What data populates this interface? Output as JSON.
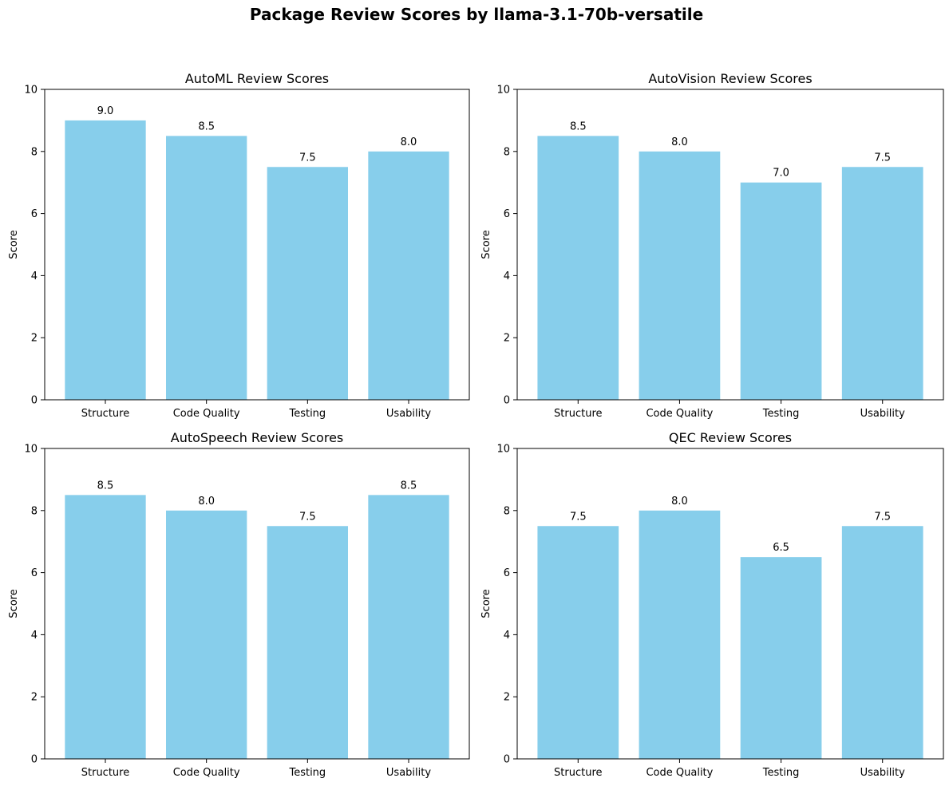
{
  "figure": {
    "suptitle": "Package Review Scores by llama-3.1-70b-versatile",
    "bar_color": "#87ceeb"
  },
  "chart_data": [
    {
      "type": "bar",
      "title": "AutoML Review Scores",
      "categories": [
        "Structure",
        "Code Quality",
        "Testing",
        "Usability"
      ],
      "values": [
        9.0,
        8.5,
        7.5,
        8.0
      ],
      "value_labels": [
        "9.0",
        "8.5",
        "7.5",
        "8.0"
      ],
      "xlabel": "",
      "ylabel": "Score",
      "ylim": [
        0,
        10
      ],
      "yticks": [
        0,
        2,
        4,
        6,
        8,
        10
      ],
      "ytick_labels": [
        "0",
        "2",
        "4",
        "6",
        "8",
        "10"
      ],
      "grid": false,
      "legend": "none"
    },
    {
      "type": "bar",
      "title": "AutoVision Review Scores",
      "categories": [
        "Structure",
        "Code Quality",
        "Testing",
        "Usability"
      ],
      "values": [
        8.5,
        8.0,
        7.0,
        7.5
      ],
      "value_labels": [
        "8.5",
        "8.0",
        "7.0",
        "7.5"
      ],
      "xlabel": "",
      "ylabel": "Score",
      "ylim": [
        0,
        10
      ],
      "yticks": [
        0,
        2,
        4,
        6,
        8,
        10
      ],
      "ytick_labels": [
        "0",
        "2",
        "4",
        "6",
        "8",
        "10"
      ],
      "grid": false,
      "legend": "none"
    },
    {
      "type": "bar",
      "title": "AutoSpeech Review Scores",
      "categories": [
        "Structure",
        "Code Quality",
        "Testing",
        "Usability"
      ],
      "values": [
        8.5,
        8.0,
        7.5,
        8.5
      ],
      "value_labels": [
        "8.5",
        "8.0",
        "7.5",
        "8.5"
      ],
      "xlabel": "",
      "ylabel": "Score",
      "ylim": [
        0,
        10
      ],
      "yticks": [
        0,
        2,
        4,
        6,
        8,
        10
      ],
      "ytick_labels": [
        "0",
        "2",
        "4",
        "6",
        "8",
        "10"
      ],
      "grid": false,
      "legend": "none"
    },
    {
      "type": "bar",
      "title": "QEC Review Scores",
      "categories": [
        "Structure",
        "Code Quality",
        "Testing",
        "Usability"
      ],
      "values": [
        7.5,
        8.0,
        6.5,
        7.5
      ],
      "value_labels": [
        "7.5",
        "8.0",
        "6.5",
        "7.5"
      ],
      "xlabel": "",
      "ylabel": "Score",
      "ylim": [
        0,
        10
      ],
      "yticks": [
        0,
        2,
        4,
        6,
        8,
        10
      ],
      "ytick_labels": [
        "0",
        "2",
        "4",
        "6",
        "8",
        "10"
      ],
      "grid": false,
      "legend": "none"
    }
  ]
}
